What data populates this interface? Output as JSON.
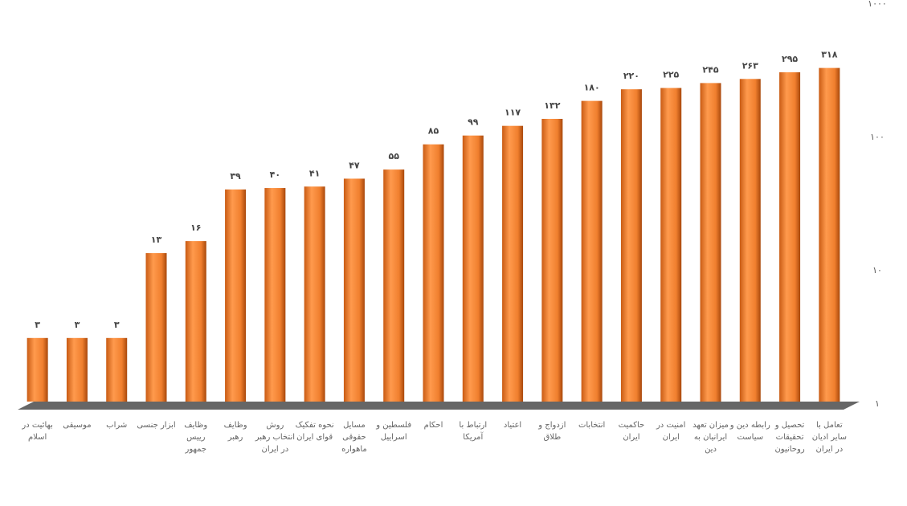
{
  "chart_data": {
    "type": "bar",
    "log_scale": true,
    "color": "#f07f2e",
    "categories": [
      "بهائیت در اسلام",
      "موسیقی",
      "شراب",
      "ابزار جنسی",
      "وظایف رییس جمهور",
      "وظایف رهبر",
      "روش انتخاب رهبر در ایران",
      "نحوه تفکیک قوای ایران",
      "مسایل حقوقی ماهواره",
      "فلسطین و اسراییل",
      "احکام",
      "ارتباط با آمریکا",
      "اعتیاد",
      "ازدواج و طلاق",
      "انتخابات",
      "حاکمیت ایران",
      "امنیت در ایران",
      "میزان تعهد ایرانیان به دین",
      "رابطه دین و سیاست",
      "تحصیل و تحقیقات روحانیون",
      "تعامل با سایر ادیان در ایران"
    ],
    "values": [
      3,
      3,
      3,
      13,
      16,
      39,
      40,
      41,
      47,
      55,
      85,
      99,
      117,
      132,
      180,
      220,
      225,
      245,
      263,
      295,
      318
    ],
    "value_labels": [
      "۳",
      "۳",
      "۳",
      "۱۳",
      "۱۶",
      "۳۹",
      "۴۰",
      "۴۱",
      "۴۷",
      "۵۵",
      "۸۵",
      "۹۹",
      "۱۱۷",
      "۱۳۲",
      "۱۸۰",
      "۲۲۰",
      "۲۲۵",
      "۲۴۵",
      "۲۶۳",
      "۲۹۵",
      "۳۱۸"
    ],
    "ylim": [
      1,
      1000
    ],
    "yticks": [
      {
        "value": 1,
        "label": "۱"
      },
      {
        "value": 10,
        "label": "۱۰"
      },
      {
        "value": 100,
        "label": "۱۰۰"
      },
      {
        "value": 1000,
        "label": "۱۰۰۰"
      }
    ]
  }
}
